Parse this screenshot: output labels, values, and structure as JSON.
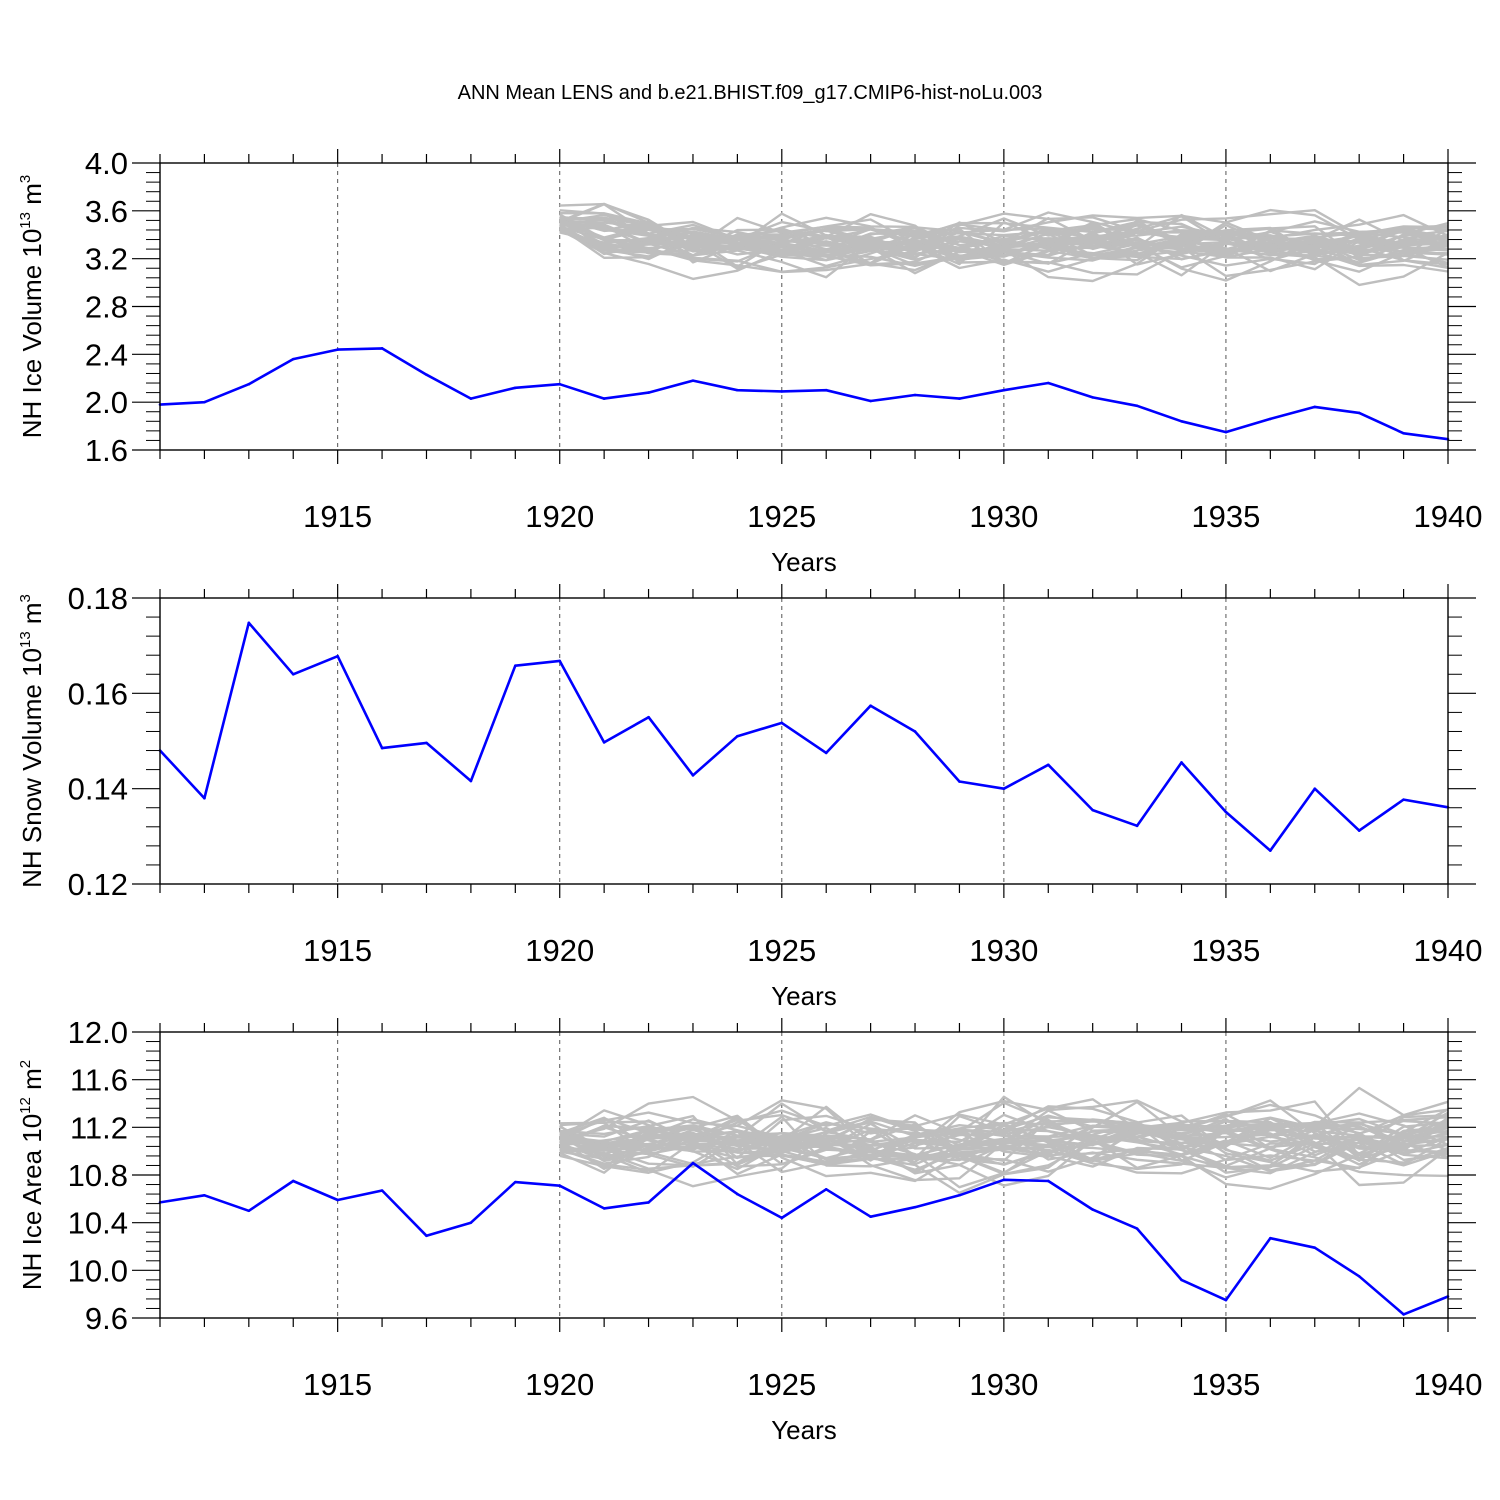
{
  "figure_title": "ANN Mean LENS and b.e21.BHIST.f09_g17.CMIP6-hist-noLu.003",
  "colors": {
    "simulation": "#0000ff",
    "ensemble": "#bebebe",
    "axis": "#000000",
    "grid": "#555555"
  },
  "chart_data": [
    {
      "type": "line",
      "panel": "top",
      "title": "ANN Mean LENS and b.e21.BHIST.f09_g17.CMIP6-hist-noLu.003",
      "xlabel": "Years",
      "ylabel": {
        "text": "NH Ice Volume 10",
        "exp": "13",
        "unit": " m",
        "unit_exp": "3"
      },
      "xlim": [
        1911,
        1940
      ],
      "ylim": [
        1.6,
        4.0
      ],
      "yticks": [
        1.6,
        2.0,
        2.4,
        2.8,
        3.2,
        3.6,
        4.0
      ],
      "ytick_labels": [
        "1.6",
        "2.0",
        "2.4",
        "2.8",
        "3.2",
        "3.6",
        "4.0"
      ],
      "xticks": [
        1915,
        1920,
        1925,
        1930,
        1935,
        1940
      ],
      "xtick_labels": [
        "1915",
        "1920",
        "1925",
        "1930",
        "1935",
        "1940"
      ],
      "series": [
        {
          "name": "b.e21.BHIST.f09_g17.CMIP6-hist-noLu.003",
          "x": [
            1911,
            1912,
            1913,
            1914,
            1915,
            1916,
            1917,
            1918,
            1919,
            1920,
            1921,
            1922,
            1923,
            1924,
            1925,
            1926,
            1927,
            1928,
            1929,
            1930,
            1931,
            1932,
            1933,
            1934,
            1935,
            1936,
            1937,
            1938,
            1939,
            1940
          ],
          "values": [
            1.98,
            2.0,
            2.15,
            2.36,
            2.44,
            2.45,
            2.23,
            2.03,
            2.12,
            2.15,
            2.03,
            2.08,
            2.18,
            2.1,
            2.09,
            2.1,
            2.01,
            2.06,
            2.03,
            2.1,
            2.16,
            2.04,
            1.97,
            1.84,
            1.75,
            1.86,
            1.96,
            1.91,
            1.74,
            1.69
          ]
        }
      ],
      "ensemble": {
        "name": "LENS",
        "start": 1920,
        "end": 1940,
        "members": 40,
        "center": [
          3.5,
          3.42,
          3.38,
          3.36,
          3.34,
          3.33,
          3.33,
          3.33,
          3.33,
          3.33,
          3.33,
          3.33,
          3.33,
          3.33,
          3.33,
          3.32,
          3.32,
          3.32,
          3.32,
          3.32,
          3.33
        ],
        "spread": 0.17,
        "seed": 11
      }
    },
    {
      "type": "line",
      "panel": "middle",
      "xlabel": "Years",
      "ylabel": {
        "text": "NH Snow Volume 10",
        "exp": "13",
        "unit": " m",
        "unit_exp": "3"
      },
      "xlim": [
        1911,
        1940
      ],
      "ylim": [
        0.12,
        0.18
      ],
      "yticks": [
        0.12,
        0.14,
        0.16,
        0.18
      ],
      "ytick_labels": [
        "0.12",
        "0.14",
        "0.16",
        "0.18"
      ],
      "xticks": [
        1915,
        1920,
        1925,
        1930,
        1935,
        1940
      ],
      "xtick_labels": [
        "1915",
        "1920",
        "1925",
        "1930",
        "1935",
        "1940"
      ],
      "series": [
        {
          "name": "b.e21.BHIST.f09_g17.CMIP6-hist-noLu.003",
          "x": [
            1911,
            1912,
            1913,
            1914,
            1915,
            1916,
            1917,
            1918,
            1919,
            1920,
            1921,
            1922,
            1923,
            1924,
            1925,
            1926,
            1927,
            1928,
            1929,
            1930,
            1931,
            1932,
            1933,
            1934,
            1935,
            1936,
            1937,
            1938,
            1939,
            1940
          ],
          "values": [
            0.148,
            0.138,
            0.1748,
            0.164,
            0.1678,
            0.1485,
            0.1496,
            0.1416,
            0.1658,
            0.1668,
            0.1497,
            0.155,
            0.1428,
            0.151,
            0.1538,
            0.1475,
            0.1574,
            0.152,
            0.1415,
            0.14,
            0.145,
            0.1355,
            0.1322,
            0.1455,
            0.1351,
            0.127,
            0.14,
            0.1312,
            0.1377,
            0.1361
          ]
        }
      ]
    },
    {
      "type": "line",
      "panel": "bottom",
      "xlabel": "Years",
      "ylabel": {
        "text": "NH Ice Area 10",
        "exp": "12",
        "unit": " m",
        "unit_exp": "2"
      },
      "xlim": [
        1911,
        1940
      ],
      "ylim": [
        9.6,
        12.0
      ],
      "yticks": [
        9.6,
        10.0,
        10.4,
        10.8,
        11.2,
        11.6,
        12.0
      ],
      "ytick_labels": [
        "9.6",
        "10.0",
        "10.4",
        "10.8",
        "11.2",
        "11.6",
        "12.0"
      ],
      "xticks": [
        1915,
        1920,
        1925,
        1930,
        1935,
        1940
      ],
      "xtick_labels": [
        "1915",
        "1920",
        "1925",
        "1930",
        "1935",
        "1940"
      ],
      "series": [
        {
          "name": "b.e21.BHIST.f09_g17.CMIP6-hist-noLu.003",
          "x": [
            1911,
            1912,
            1913,
            1914,
            1915,
            1916,
            1917,
            1918,
            1919,
            1920,
            1921,
            1922,
            1923,
            1924,
            1925,
            1926,
            1927,
            1928,
            1929,
            1930,
            1931,
            1932,
            1933,
            1934,
            1935,
            1936,
            1937,
            1938,
            1939,
            1940
          ],
          "values": [
            10.57,
            10.63,
            10.5,
            10.75,
            10.59,
            10.67,
            10.29,
            10.4,
            10.74,
            10.71,
            10.52,
            10.57,
            10.9,
            10.64,
            10.44,
            10.68,
            10.45,
            10.53,
            10.63,
            10.76,
            10.75,
            10.51,
            10.35,
            9.92,
            9.75,
            10.27,
            10.19,
            9.95,
            9.63,
            9.78
          ]
        }
      ],
      "ensemble": {
        "name": "LENS",
        "start": 1920,
        "end": 1940,
        "members": 40,
        "center": [
          11.1,
          11.05,
          11.08,
          11.1,
          11.08,
          11.05,
          11.05,
          11.05,
          11.05,
          11.05,
          11.1,
          11.1,
          11.1,
          11.1,
          11.1,
          11.05,
          11.05,
          11.05,
          11.05,
          11.05,
          11.1
        ],
        "spread": 0.21,
        "seed": 29
      }
    }
  ]
}
